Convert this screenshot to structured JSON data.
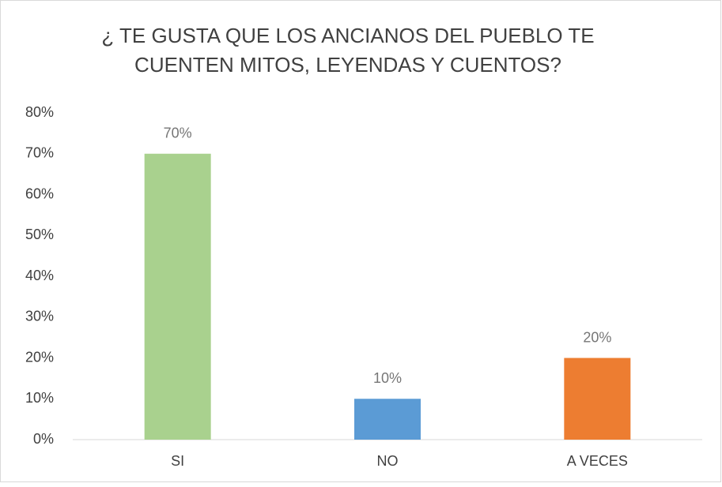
{
  "chart_data": {
    "type": "bar",
    "title": [
      "¿ TE GUSTA QUE LOS ANCIANOS DEL PUEBLO TE",
      "CUENTEN MITOS, LEYENDAS Y CUENTOS?"
    ],
    "categories": [
      "SI",
      "NO",
      "A VECES"
    ],
    "values": [
      70,
      10,
      20
    ],
    "value_labels": [
      "70%",
      "10%",
      "20%"
    ],
    "colors": [
      "#a9d18e",
      "#5b9bd5",
      "#ed7d31"
    ],
    "ylim": [
      0,
      80
    ],
    "yticks": [
      {
        "value": 0,
        "label": "0%"
      },
      {
        "value": 10,
        "label": "10%"
      },
      {
        "value": 20,
        "label": "20%"
      },
      {
        "value": 30,
        "label": "30%"
      },
      {
        "value": 40,
        "label": "40%"
      },
      {
        "value": 50,
        "label": "50%"
      },
      {
        "value": 60,
        "label": "60%"
      },
      {
        "value": 70,
        "label": "70%"
      },
      {
        "value": 80,
        "label": "80%"
      }
    ],
    "grid": false
  }
}
